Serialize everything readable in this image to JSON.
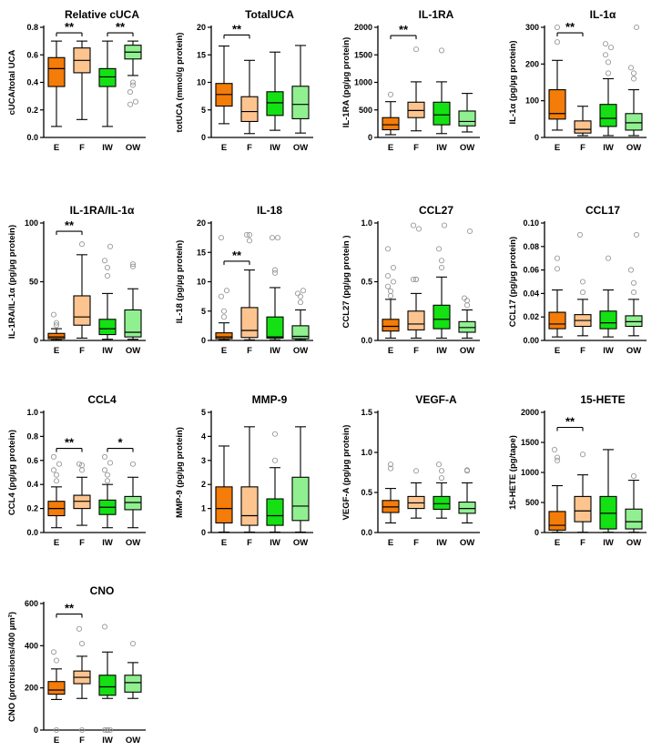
{
  "colors": {
    "E": "#f47c08",
    "F": "#fdc48f",
    "IW": "#14e014",
    "OW": "#90f090",
    "outlier": "#999999",
    "line": "#000000"
  },
  "chart_data": [
    {
      "type": "box",
      "title": "Relative  cUCA",
      "ylabel": "cUCA/total UCA",
      "ylim": [
        0,
        0.8
      ],
      "yticks": [
        "0.0",
        "0.2",
        "0.4",
        "0.6",
        "0.8"
      ],
      "categories": [
        "E",
        "F",
        "IW",
        "OW"
      ],
      "boxes": [
        {
          "min": 0.08,
          "q1": 0.37,
          "median": 0.5,
          "q3": 0.58,
          "max": 0.7,
          "outliers": []
        },
        {
          "min": 0.13,
          "q1": 0.47,
          "median": 0.56,
          "q3": 0.65,
          "max": 0.7,
          "outliers": []
        },
        {
          "min": 0.08,
          "q1": 0.37,
          "median": 0.44,
          "q3": 0.5,
          "max": 0.7,
          "outliers": []
        },
        {
          "min": 0.45,
          "q1": 0.57,
          "median": 0.62,
          "q3": 0.67,
          "max": 0.7,
          "outliers": [
            0.4,
            0.38,
            0.33,
            0.26,
            0.24
          ]
        }
      ],
      "sig": [
        {
          "from": 0,
          "to": 1,
          "label": "**",
          "y": 0.76
        },
        {
          "from": 2,
          "to": 3,
          "label": "**",
          "y": 0.76
        }
      ]
    },
    {
      "type": "box",
      "title": "TotalUCA",
      "ylabel": "totUCA (mmol/g protein)",
      "ylim": [
        0,
        20
      ],
      "yticks": [
        "0",
        "5",
        "10",
        "15",
        "20"
      ],
      "categories": [
        "E",
        "F",
        "IW",
        "OW"
      ],
      "boxes": [
        {
          "min": 2.5,
          "q1": 5.7,
          "median": 7.8,
          "q3": 9.8,
          "max": 16.6,
          "outliers": []
        },
        {
          "min": 0.7,
          "q1": 2.9,
          "median": 4.7,
          "q3": 7.4,
          "max": 14.0,
          "outliers": []
        },
        {
          "min": 1.3,
          "q1": 4.0,
          "median": 6.3,
          "q3": 8.3,
          "max": 15.5,
          "outliers": []
        },
        {
          "min": 0.8,
          "q1": 3.4,
          "median": 6.0,
          "q3": 9.3,
          "max": 16.7,
          "outliers": []
        }
      ],
      "sig": [
        {
          "from": 0,
          "to": 1,
          "label": "**",
          "y": 18.6
        }
      ]
    },
    {
      "type": "box",
      "title": "IL-1RA",
      "ylabel": "IL-1RA (pg/µg protein)",
      "ylim": [
        0,
        2000
      ],
      "yticks": [
        "0",
        "500",
        "1000",
        "1500",
        "2000"
      ],
      "categories": [
        "E",
        "F",
        "IW",
        "OW"
      ],
      "boxes": [
        {
          "min": 50,
          "q1": 140,
          "median": 230,
          "q3": 360,
          "max": 650,
          "outliers": [
            780
          ]
        },
        {
          "min": 120,
          "q1": 360,
          "median": 490,
          "q3": 640,
          "max": 1010,
          "outliers": [
            1600
          ]
        },
        {
          "min": 70,
          "q1": 230,
          "median": 410,
          "q3": 640,
          "max": 1010,
          "outliers": [
            1580
          ]
        },
        {
          "min": 100,
          "q1": 210,
          "median": 290,
          "q3": 480,
          "max": 800,
          "outliers": []
        }
      ],
      "sig": [
        {
          "from": 0,
          "to": 1,
          "label": "**",
          "y": 1850
        }
      ]
    },
    {
      "type": "box",
      "title": "IL-1α",
      "ylabel": "IL-1α (pg/µg protein)",
      "ylim": [
        0,
        300
      ],
      "yticks": [
        "0",
        "100",
        "200",
        "300"
      ],
      "categories": [
        "E",
        "F",
        "IW",
        "OW"
      ],
      "boxes": [
        {
          "min": 20,
          "q1": 50,
          "median": 65,
          "q3": 130,
          "max": 210,
          "outliers": [
            260,
            300
          ]
        },
        {
          "min": 5,
          "q1": 12,
          "median": 22,
          "q3": 45,
          "max": 85,
          "outliers": []
        },
        {
          "min": 5,
          "q1": 30,
          "median": 52,
          "q3": 90,
          "max": 160,
          "outliers": [
            175,
            205,
            225,
            245,
            255
          ]
        },
        {
          "min": 5,
          "q1": 20,
          "median": 40,
          "q3": 65,
          "max": 130,
          "outliers": [
            160,
            175,
            190,
            300
          ]
        }
      ],
      "sig": [
        {
          "from": 0,
          "to": 1,
          "label": "**",
          "y": 285
        }
      ]
    },
    {
      "type": "box",
      "title": "IL-1RA/IL-1α",
      "ylabel": "IL-1RA/IL-1α (pg/µg protein)",
      "ylim": [
        0,
        100
      ],
      "yticks": [
        "0",
        "50",
        "100"
      ],
      "categories": [
        "E",
        "F",
        "IW",
        "OW"
      ],
      "boxes": [
        {
          "min": 0.5,
          "q1": 1.5,
          "median": 3,
          "q3": 6,
          "max": 10,
          "outliers": [
            13,
            15,
            22
          ]
        },
        {
          "min": 2,
          "q1": 13,
          "median": 20,
          "q3": 38,
          "max": 73,
          "outliers": [
            82
          ]
        },
        {
          "min": 1,
          "q1": 5,
          "median": 10,
          "q3": 18,
          "max": 40,
          "outliers": [
            55,
            62,
            68,
            80
          ]
        },
        {
          "min": 1,
          "q1": 3,
          "median": 7,
          "q3": 26,
          "max": 44,
          "outliers": [
            63,
            65
          ]
        }
      ],
      "sig": [
        {
          "from": 0,
          "to": 1,
          "label": "**",
          "y": 93
        }
      ]
    },
    {
      "type": "box",
      "title": "IL-18",
      "ylabel": "IL-18 (pg/µg protein)",
      "ylim": [
        0,
        20
      ],
      "yticks": [
        "0",
        "5",
        "10",
        "15",
        "20"
      ],
      "categories": [
        "E",
        "F",
        "IW",
        "OW"
      ],
      "boxes": [
        {
          "min": 0.1,
          "q1": 0.3,
          "median": 0.6,
          "q3": 1.3,
          "max": 3.0,
          "outliers": [
            4.0,
            5.0,
            7.5,
            8.5,
            17.5
          ]
        },
        {
          "min": 0.1,
          "q1": 0.5,
          "median": 1.7,
          "q3": 5.6,
          "max": 12.0,
          "outliers": [
            17.0,
            18.0,
            18.0
          ]
        },
        {
          "min": 0.1,
          "q1": 0.4,
          "median": 0.6,
          "q3": 4.0,
          "max": 9.0,
          "outliers": [
            11.5,
            12.0,
            17.5,
            17.5
          ]
        },
        {
          "min": 0.1,
          "q1": 0.3,
          "median": 0.7,
          "q3": 2.5,
          "max": 5.2,
          "outliers": [
            6.5,
            7.5,
            8.0,
            8.5
          ]
        }
      ],
      "sig": [
        {
          "from": 0,
          "to": 1,
          "label": "**",
          "y": 13.5
        }
      ]
    },
    {
      "type": "box",
      "title": "CCL27",
      "ylabel": "CCL27 (pg/µg protein )",
      "ylim": [
        0,
        1.0
      ],
      "yticks": [
        "0.0",
        "0.5",
        "1.0"
      ],
      "categories": [
        "E",
        "F",
        "IW",
        "OW"
      ],
      "boxes": [
        {
          "min": 0.02,
          "q1": 0.08,
          "median": 0.12,
          "q3": 0.18,
          "max": 0.35,
          "outliers": [
            0.38,
            0.42,
            0.46,
            0.5,
            0.55,
            0.62,
            0.78
          ]
        },
        {
          "min": 0.02,
          "q1": 0.09,
          "median": 0.14,
          "q3": 0.25,
          "max": 0.4,
          "outliers": [
            0.52,
            0.52,
            0.52,
            0.95,
            0.98
          ]
        },
        {
          "min": 0.02,
          "q1": 0.1,
          "median": 0.18,
          "q3": 0.3,
          "max": 0.54,
          "outliers": [
            0.62,
            0.68,
            0.78,
            0.98
          ]
        },
        {
          "min": 0.02,
          "q1": 0.07,
          "median": 0.11,
          "q3": 0.16,
          "max": 0.26,
          "outliers": [
            0.3,
            0.34,
            0.36,
            0.93
          ]
        }
      ],
      "sig": []
    },
    {
      "type": "box",
      "title": "CCL17",
      "ylabel": "CCL17 (pg/µg protein)",
      "ylim": [
        0,
        0.1
      ],
      "yticks": [
        "0.00",
        "0.02",
        "0.04",
        "0.06",
        "0.08",
        "0.10"
      ],
      "categories": [
        "E",
        "F",
        "IW",
        "OW"
      ],
      "boxes": [
        {
          "min": 0.003,
          "q1": 0.01,
          "median": 0.014,
          "q3": 0.024,
          "max": 0.043,
          "outliers": [
            0.061,
            0.07
          ]
        },
        {
          "min": 0.004,
          "q1": 0.012,
          "median": 0.017,
          "q3": 0.022,
          "max": 0.035,
          "outliers": [
            0.041,
            0.05,
            0.09
          ]
        },
        {
          "min": 0.003,
          "q1": 0.01,
          "median": 0.015,
          "q3": 0.025,
          "max": 0.043,
          "outliers": [
            0.07
          ]
        },
        {
          "min": 0.004,
          "q1": 0.012,
          "median": 0.016,
          "q3": 0.021,
          "max": 0.035,
          "outliers": [
            0.041,
            0.049,
            0.06,
            0.09
          ]
        }
      ],
      "sig": []
    },
    {
      "type": "box",
      "title": "CCL4",
      "ylabel": "CCL4 (pg/µg protein)",
      "ylim": [
        0,
        1.0
      ],
      "yticks": [
        "0.0",
        "0.2",
        "0.4",
        "0.6",
        "0.8",
        "1.0"
      ],
      "categories": [
        "E",
        "F",
        "IW",
        "OW"
      ],
      "boxes": [
        {
          "min": 0.04,
          "q1": 0.14,
          "median": 0.2,
          "q3": 0.26,
          "max": 0.38,
          "outliers": [
            0.43,
            0.48,
            0.52,
            0.57,
            0.63
          ]
        },
        {
          "min": 0.06,
          "q1": 0.2,
          "median": 0.26,
          "q3": 0.31,
          "max": 0.46,
          "outliers": [
            0.52,
            0.56,
            0.57
          ]
        },
        {
          "min": 0.04,
          "q1": 0.15,
          "median": 0.21,
          "q3": 0.27,
          "max": 0.4,
          "outliers": [
            0.43,
            0.48,
            0.52,
            0.58,
            0.63
          ]
        },
        {
          "min": 0.04,
          "q1": 0.19,
          "median": 0.25,
          "q3": 0.3,
          "max": 0.46,
          "outliers": [
            0.57
          ]
        }
      ],
      "sig": [
        {
          "from": 0,
          "to": 1,
          "label": "**",
          "y": 0.7
        },
        {
          "from": 2,
          "to": 3,
          "label": "*",
          "y": 0.7
        }
      ]
    },
    {
      "type": "box",
      "title": "MMP-9",
      "ylabel": "MMP-9 (pg/µg protein)",
      "ylim": [
        0,
        5
      ],
      "yticks": [
        "0",
        "1",
        "2",
        "3",
        "4",
        "5"
      ],
      "categories": [
        "E",
        "F",
        "IW",
        "OW"
      ],
      "boxes": [
        {
          "min": 0.02,
          "q1": 0.4,
          "median": 1.0,
          "q3": 1.9,
          "max": 3.6,
          "outliers": []
        },
        {
          "min": 0.02,
          "q1": 0.3,
          "median": 0.7,
          "q3": 1.9,
          "max": 4.4,
          "outliers": []
        },
        {
          "min": 0.02,
          "q1": 0.3,
          "median": 0.7,
          "q3": 1.4,
          "max": 2.7,
          "outliers": [
            3.0,
            4.1
          ]
        },
        {
          "min": 0.02,
          "q1": 0.5,
          "median": 1.1,
          "q3": 2.3,
          "max": 4.4,
          "outliers": []
        }
      ],
      "sig": []
    },
    {
      "type": "box",
      "title": "VEGF-A",
      "ylabel": "VEGF-A (pg/µg protein)",
      "ylim": [
        0,
        1.5
      ],
      "yticks": [
        "0.0",
        "0.5",
        "1.0",
        "1.5"
      ],
      "categories": [
        "E",
        "F",
        "IW",
        "OW"
      ],
      "boxes": [
        {
          "min": 0.12,
          "q1": 0.25,
          "median": 0.32,
          "q3": 0.4,
          "max": 0.55,
          "outliers": [
            0.8,
            0.85
          ]
        },
        {
          "min": 0.18,
          "q1": 0.3,
          "median": 0.37,
          "q3": 0.45,
          "max": 0.62,
          "outliers": [
            0.77
          ]
        },
        {
          "min": 0.18,
          "q1": 0.29,
          "median": 0.36,
          "q3": 0.45,
          "max": 0.62,
          "outliers": [
            0.68,
            0.77,
            0.85
          ]
        },
        {
          "min": 0.12,
          "q1": 0.24,
          "median": 0.3,
          "q3": 0.38,
          "max": 0.62,
          "outliers": [
            0.77,
            0.78
          ]
        }
      ],
      "sig": []
    },
    {
      "type": "box",
      "title": "15-HETE",
      "ylabel": "15-HETE (pg/tape)",
      "ylim": [
        0,
        2000
      ],
      "yticks": [
        "0",
        "500",
        "1000",
        "1500",
        "2000"
      ],
      "categories": [
        "E",
        "F",
        "IW",
        "OW"
      ],
      "boxes": [
        {
          "min": 5,
          "q1": 40,
          "median": 120,
          "q3": 350,
          "max": 780,
          "outliers": [
            1200,
            1250,
            1380
          ]
        },
        {
          "min": 5,
          "q1": 180,
          "median": 360,
          "q3": 600,
          "max": 960,
          "outliers": [
            1300
          ]
        },
        {
          "min": 5,
          "q1": 60,
          "median": 320,
          "q3": 600,
          "max": 1380,
          "outliers": []
        },
        {
          "min": 5,
          "q1": 60,
          "median": 180,
          "q3": 390,
          "max": 870,
          "outliers": [
            940
          ]
        }
      ],
      "sig": [
        {
          "from": 0,
          "to": 1,
          "label": "**",
          "y": 1750
        }
      ]
    },
    {
      "type": "box",
      "title": "CNO",
      "ylabel": "CNO (protrusions/400 µm²)",
      "ylim": [
        0,
        600
      ],
      "yticks": [
        "0",
        "200",
        "400",
        "600"
      ],
      "categories": [
        "E",
        "F",
        "IW",
        "OW"
      ],
      "boxes": [
        {
          "min": 145,
          "q1": 170,
          "median": 190,
          "q3": 230,
          "max": 290,
          "outliers": [
            0,
            330,
            370
          ]
        },
        {
          "min": 150,
          "q1": 220,
          "median": 250,
          "q3": 280,
          "max": 350,
          "outliers": [
            0,
            410,
            480
          ]
        },
        {
          "min": 150,
          "q1": 165,
          "median": 205,
          "q3": 260,
          "max": 370,
          "outliers": [
            0,
            0,
            0,
            0,
            490
          ]
        },
        {
          "min": 150,
          "q1": 180,
          "median": 225,
          "q3": 260,
          "max": 320,
          "outliers": [
            410
          ]
        }
      ],
      "sig": [
        {
          "from": 0,
          "to": 1,
          "label": "**",
          "y": 550
        }
      ]
    }
  ]
}
